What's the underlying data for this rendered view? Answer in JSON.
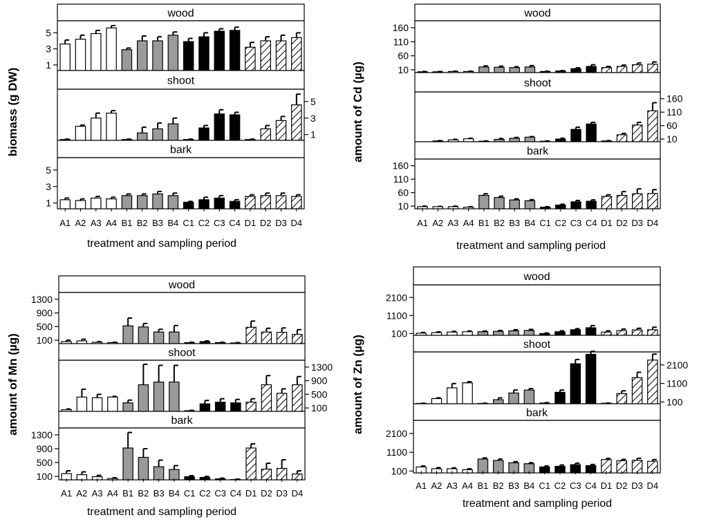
{
  "chart_data": [
    {
      "type": "bar",
      "id": "biomass",
      "ylabel": "biomass (g DW)",
      "xlabel": "treatment and sampling period",
      "categories": [
        "A1",
        "A2",
        "A3",
        "A4",
        "B1",
        "B2",
        "B3",
        "B4",
        "C1",
        "C2",
        "C3",
        "C4",
        "D1",
        "D2",
        "D3",
        "D4"
      ],
      "ylim": [
        0.3,
        6.5
      ],
      "yticks": [
        1,
        3,
        5
      ],
      "yticks_text": [
        "1",
        "3",
        "5"
      ],
      "panels": [
        {
          "title": "wood",
          "tick_side": "left",
          "values": [
            3.6,
            4.2,
            4.9,
            5.6,
            2.9,
            4.0,
            4.0,
            4.7,
            3.9,
            4.5,
            5.2,
            5.3,
            3.2,
            4.0,
            4.0,
            4.4
          ],
          "errors": [
            0.5,
            0.5,
            0.4,
            0.3,
            0.2,
            0.6,
            0.5,
            0.4,
            0.4,
            0.5,
            0.3,
            0.4,
            0.6,
            0.5,
            0.7,
            0.6
          ]
        },
        {
          "title": "shoot",
          "tick_side": "right",
          "values": [
            0.4,
            2.0,
            3.0,
            3.6,
            0.4,
            1.2,
            1.7,
            2.3,
            0.4,
            1.8,
            3.5,
            3.4,
            0.4,
            1.7,
            2.7,
            4.6
          ],
          "errors": [
            0.05,
            0.15,
            0.6,
            0.3,
            0.05,
            0.7,
            0.7,
            0.7,
            0.05,
            0.3,
            0.5,
            0.3,
            0.05,
            0.4,
            0.5,
            1.3
          ]
        },
        {
          "title": "bark",
          "tick_side": "left",
          "values": [
            1.4,
            1.3,
            1.6,
            1.5,
            1.9,
            1.9,
            2.1,
            1.9,
            1.1,
            1.4,
            1.6,
            1.2,
            1.8,
            1.9,
            1.9,
            1.8
          ],
          "errors": [
            0.2,
            0.2,
            0.2,
            0.2,
            0.2,
            0.2,
            0.3,
            0.3,
            0.1,
            0.3,
            0.3,
            0.2,
            0.2,
            0.3,
            0.3,
            0.2
          ]
        }
      ]
    },
    {
      "type": "bar",
      "id": "cd",
      "ylabel": "amount of Cd (µg)",
      "xlabel": "treatment and sampling period",
      "categories": [
        "A1",
        "A2",
        "A3",
        "A4",
        "B1",
        "B2",
        "B3",
        "B4",
        "C1",
        "C2",
        "C3",
        "C4",
        "D1",
        "D2",
        "D3",
        "D4"
      ],
      "ylim": [
        0,
        185
      ],
      "yticks": [
        10,
        60,
        110,
        160
      ],
      "yticks_text": [
        "10",
        "60",
        "110",
        "160"
      ],
      "panels": [
        {
          "title": "wood",
          "tick_side": "left",
          "values": [
            3,
            3,
            4,
            4,
            20,
            19,
            18,
            20,
            4,
            6,
            14,
            22,
            18,
            22,
            28,
            30
          ],
          "errors": [
            1,
            1,
            1,
            1,
            4,
            4,
            3,
            5,
            1,
            1,
            3,
            6,
            4,
            5,
            6,
            8
          ]
        },
        {
          "title": "shoot",
          "tick_side": "right",
          "values": [
            0,
            3,
            7,
            11,
            2,
            9,
            13,
            17,
            2,
            10,
            46,
            66,
            3,
            26,
            62,
            115
          ],
          "errors": [
            0,
            1,
            2,
            2,
            1,
            3,
            3,
            2,
            1,
            3,
            8,
            6,
            1,
            5,
            10,
            30
          ]
        },
        {
          "title": "bark",
          "tick_side": "left",
          "values": [
            8,
            8,
            8,
            6,
            50,
            42,
            33,
            30,
            6,
            14,
            26,
            28,
            46,
            50,
            56,
            57
          ],
          "errors": [
            2,
            1,
            2,
            2,
            6,
            5,
            4,
            4,
            2,
            3,
            5,
            5,
            6,
            14,
            18,
            14
          ]
        }
      ]
    },
    {
      "type": "bar",
      "id": "mn",
      "ylabel": "amount of Mn (µg)",
      "xlabel": "treatment and sampling period",
      "categories": [
        "A1",
        "A2",
        "A3",
        "A4",
        "B1",
        "B2",
        "B3",
        "B4",
        "C1",
        "C2",
        "C3",
        "C4",
        "D1",
        "D2",
        "D3",
        "D4"
      ],
      "ylim": [
        0,
        1500
      ],
      "yticks": [
        100,
        500,
        900,
        1300
      ],
      "yticks_text": [
        "100",
        "500",
        "900",
        "1300"
      ],
      "panels": [
        {
          "title": "wood",
          "tick_side": "left",
          "values": [
            60,
            80,
            40,
            30,
            520,
            490,
            340,
            340,
            30,
            60,
            30,
            20,
            480,
            340,
            330,
            270
          ],
          "errors": [
            40,
            50,
            20,
            10,
            230,
            100,
            80,
            190,
            10,
            20,
            10,
            10,
            180,
            110,
            130,
            140
          ]
        },
        {
          "title": "shoot",
          "tick_side": "right",
          "values": [
            50,
            420,
            400,
            420,
            250,
            780,
            860,
            860,
            20,
            220,
            270,
            250,
            270,
            780,
            530,
            780
          ],
          "errors": [
            20,
            230,
            100,
            20,
            80,
            600,
            490,
            490,
            10,
            100,
            100,
            100,
            100,
            270,
            130,
            240
          ]
        },
        {
          "title": "bark",
          "tick_side": "left",
          "values": [
            180,
            150,
            90,
            40,
            920,
            650,
            380,
            300,
            90,
            70,
            30,
            10,
            920,
            310,
            330,
            170
          ],
          "errors": [
            80,
            80,
            40,
            20,
            450,
            250,
            190,
            110,
            30,
            30,
            20,
            10,
            120,
            170,
            250,
            90
          ]
        }
      ]
    },
    {
      "type": "bar",
      "id": "zn",
      "ylabel": "amount of Zn (µg)",
      "xlabel": "treatment and sampling period",
      "categories": [
        "A1",
        "A2",
        "A3",
        "A4",
        "B1",
        "B2",
        "B3",
        "B4",
        "C1",
        "C2",
        "C3",
        "C4",
        "D1",
        "D2",
        "D3",
        "D4"
      ],
      "ylim": [
        0,
        2800
      ],
      "yticks": [
        100,
        1100,
        2100
      ],
      "yticks_text": [
        "100",
        "1100",
        "2100"
      ],
      "panels": [
        {
          "title": "wood",
          "tick_side": "left",
          "values": [
            120,
            150,
            180,
            200,
            200,
            220,
            250,
            270,
            100,
            200,
            310,
            420,
            180,
            260,
            300,
            310
          ],
          "errors": [
            40,
            40,
            40,
            40,
            40,
            50,
            60,
            60,
            30,
            50,
            60,
            120,
            70,
            90,
            90,
            140
          ]
        },
        {
          "title": "shoot",
          "tick_side": "right",
          "values": [
            20,
            280,
            860,
            1130,
            20,
            220,
            580,
            740,
            40,
            620,
            2160,
            2670,
            30,
            550,
            1410,
            2360
          ],
          "errors": [
            10,
            40,
            230,
            60,
            10,
            100,
            160,
            80,
            20,
            120,
            230,
            160,
            10,
            150,
            290,
            320
          ]
        },
        {
          "title": "bark",
          "tick_side": "left",
          "values": [
            320,
            220,
            220,
            170,
            740,
            660,
            540,
            490,
            320,
            350,
            440,
            390,
            710,
            650,
            670,
            620
          ],
          "errors": [
            50,
            60,
            50,
            50,
            60,
            80,
            60,
            50,
            50,
            70,
            80,
            60,
            60,
            70,
            110,
            90
          ]
        }
      ]
    }
  ]
}
